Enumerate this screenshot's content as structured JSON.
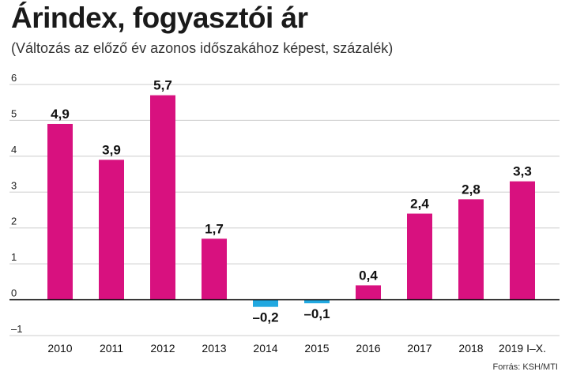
{
  "header": {
    "title": "Árindex, fogyasztói ár",
    "subtitle": "(Változás az előző év azonos időszakához képest, százalék)"
  },
  "footer": {
    "source": "Forrás: KSH/MTI"
  },
  "colors": {
    "positive": "#d8117f",
    "negative": "#21a8e0",
    "gridline": "#cccccc",
    "zero_line": "#111111"
  },
  "chart_data": {
    "type": "bar",
    "title": "Árindex, fogyasztói ár",
    "subtitle": "(Változás az előző év azonos időszakához képest, százalék)",
    "categories": [
      "2010",
      "2011",
      "2012",
      "2013",
      "2014",
      "2015",
      "2016",
      "2017",
      "2018",
      "2019 I–X."
    ],
    "values": [
      4.9,
      3.9,
      5.7,
      1.7,
      -0.2,
      -0.1,
      0.4,
      2.4,
      2.8,
      3.3
    ],
    "value_labels": [
      "4,9",
      "3,9",
      "5,7",
      "1,7",
      "–0,2",
      "–0,1",
      "0,4",
      "2,4",
      "2,8",
      "3,3"
    ],
    "yticks": [
      6,
      5,
      4,
      3,
      2,
      1,
      0,
      -1
    ],
    "ytick_labels": [
      "6",
      "5",
      "4",
      "3",
      "2",
      "1",
      "0",
      "–1"
    ],
    "ylim": [
      -1,
      6
    ],
    "grid": true,
    "legend": "none"
  }
}
